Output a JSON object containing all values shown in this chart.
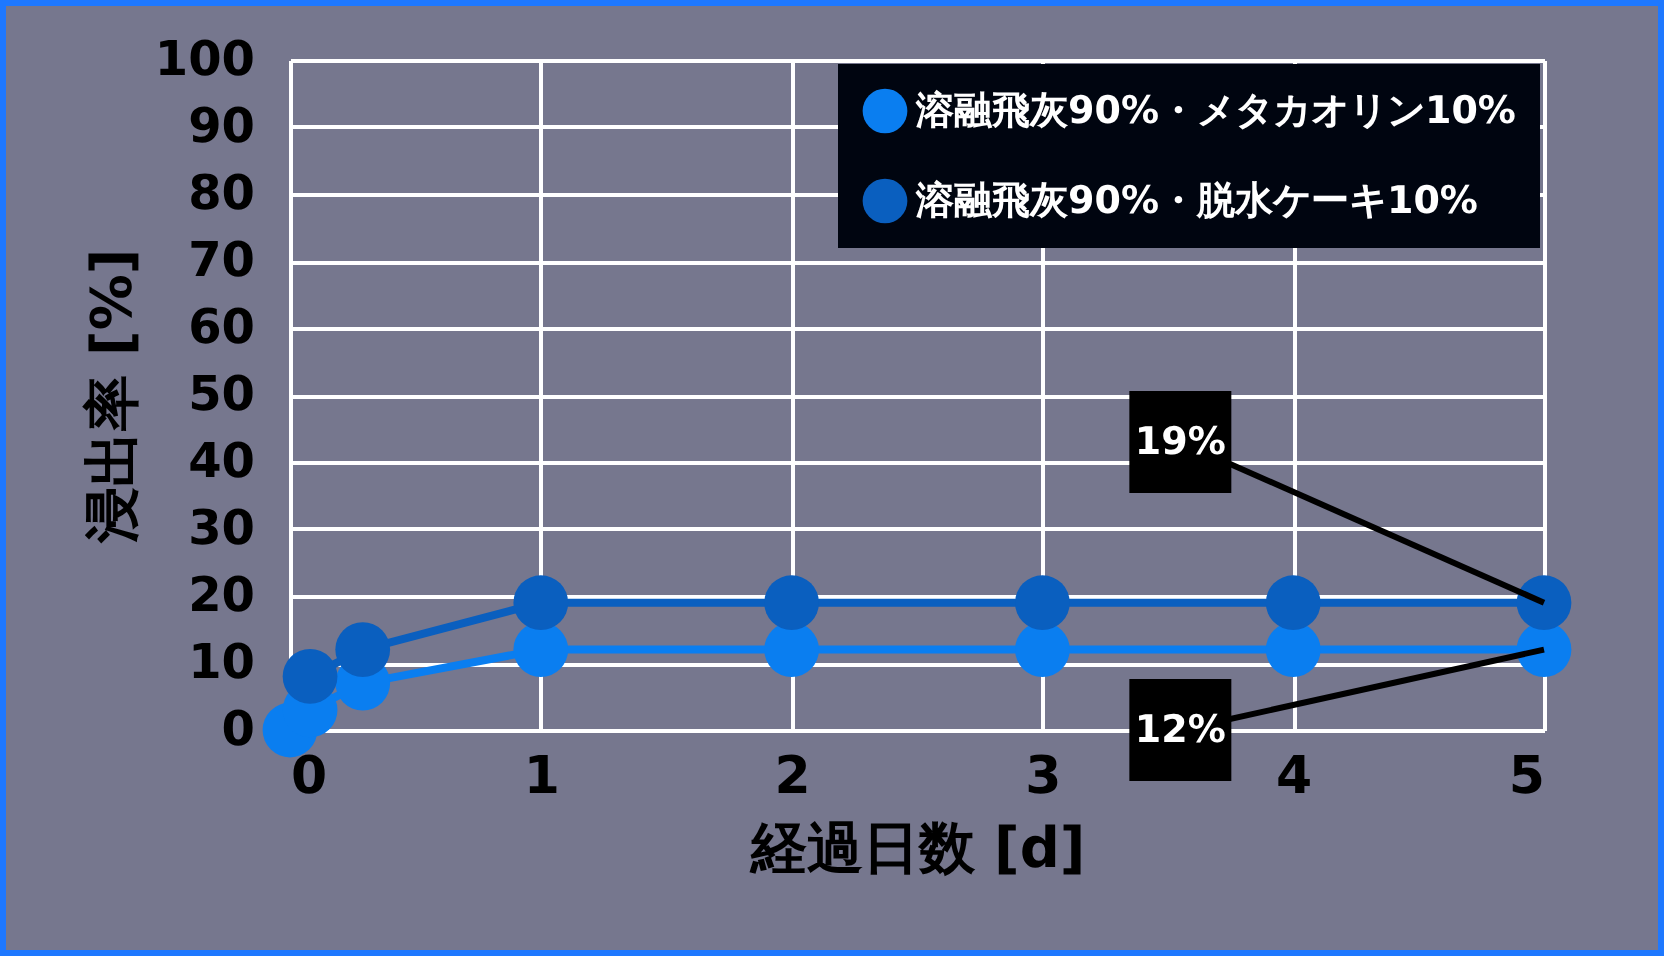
{
  "chart_data": {
    "type": "line",
    "xlabel": "経過日数 [d]",
    "ylabel": "浸出率 [%]",
    "xlim": [
      0,
      5
    ],
    "xticks": [
      0,
      1,
      2,
      3,
      4,
      5
    ],
    "ylim": [
      0,
      100
    ],
    "yticks": [
      0,
      10,
      20,
      30,
      40,
      50,
      60,
      70,
      80,
      90,
      100
    ],
    "grid": true,
    "legend": "top right",
    "marker": "circle",
    "line_style": "solid",
    "series": [
      {
        "name": "溶融飛灰90%・メタカオリン10%",
        "color": "#0a7ef0",
        "x": [
          0,
          0.08,
          0.29,
          1,
          2,
          3,
          4,
          5
        ],
        "values": [
          0,
          3,
          7,
          12,
          12,
          12,
          12,
          12
        ]
      },
      {
        "name": "溶融飛灰90%・脱水ケーキ10%",
        "color": "#0a5fbf",
        "x": [
          0.08,
          0.29,
          1,
          2,
          3,
          4,
          5
        ],
        "values": [
          8,
          12,
          19,
          19,
          19,
          19,
          19
        ]
      }
    ],
    "annotations": [
      {
        "text": "19%",
        "x": 5,
        "y": 19
      },
      {
        "text": "12%",
        "x": 5,
        "y": 12
      }
    ]
  }
}
